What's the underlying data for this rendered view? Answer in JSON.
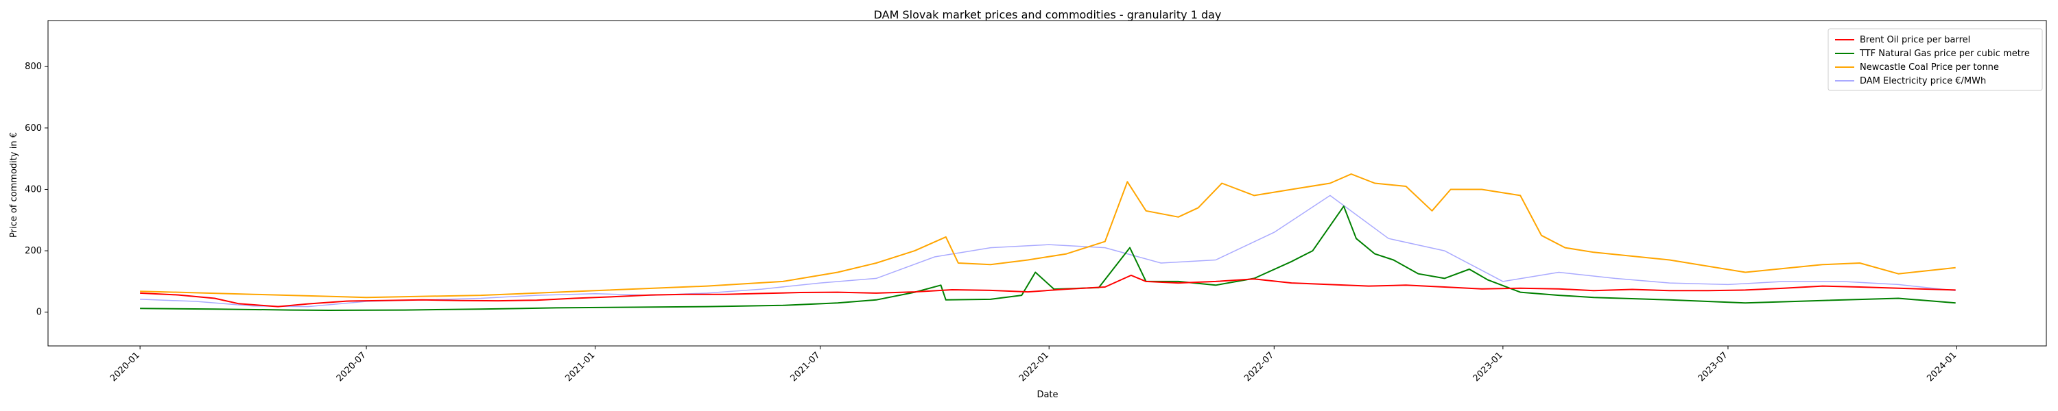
{
  "chart_data": {
    "type": "line",
    "title": "DAM Slovak market prices and commodities - granularity 1 day",
    "xlabel": "Date",
    "ylabel": "Price of commodity in €",
    "xlim": [
      "2019-10-19",
      "2024-03-13"
    ],
    "ylim": [
      -110,
      950
    ],
    "x_ticks": [
      "2020-01",
      "2020-07",
      "2021-01",
      "2021-07",
      "2022-01",
      "2022-07",
      "2023-01",
      "2023-07",
      "2024-01"
    ],
    "y_ticks": [
      0,
      200,
      400,
      600,
      800
    ],
    "grid": false,
    "legend_position": "top-right",
    "series": [
      {
        "name": "Brent Oil price per barrel",
        "color": "#ff0000",
        "x": [
          "2020-01-01",
          "2020-02-01",
          "2020-03-01",
          "2020-03-20",
          "2020-04-21",
          "2020-05-15",
          "2020-06-15",
          "2020-07-15",
          "2020-08-15",
          "2020-09-15",
          "2020-10-15",
          "2020-11-15",
          "2020-12-15",
          "2021-01-15",
          "2021-02-15",
          "2021-03-15",
          "2021-04-15",
          "2021-05-15",
          "2021-06-15",
          "2021-07-15",
          "2021-08-15",
          "2021-09-15",
          "2021-10-15",
          "2021-11-15",
          "2021-12-15",
          "2022-01-15",
          "2022-02-15",
          "2022-03-08",
          "2022-03-20",
          "2022-04-15",
          "2022-05-15",
          "2022-06-15",
          "2022-07-15",
          "2022-08-15",
          "2022-09-15",
          "2022-10-15",
          "2022-11-15",
          "2022-12-15",
          "2023-01-15",
          "2023-02-15",
          "2023-03-15",
          "2023-04-15",
          "2023-05-15",
          "2023-06-15",
          "2023-07-15",
          "2023-08-15",
          "2023-09-15",
          "2023-10-15",
          "2023-11-15",
          "2023-12-31"
        ],
        "y": [
          62,
          56,
          45,
          28,
          18,
          27,
          36,
          38,
          40,
          38,
          37,
          39,
          45,
          50,
          56,
          58,
          58,
          61,
          64,
          65,
          62,
          66,
          73,
          71,
          66,
          75,
          82,
          120,
          100,
          95,
          100,
          108,
          95,
          90,
          85,
          88,
          82,
          76,
          78,
          76,
          70,
          74,
          70,
          70,
          72,
          78,
          85,
          82,
          78,
          72
        ]
      },
      {
        "name": "TTF Natural Gas price per cubic metre",
        "color": "#008000",
        "x": [
          "2020-01-01",
          "2020-03-01",
          "2020-05-01",
          "2020-06-01",
          "2020-08-01",
          "2020-10-01",
          "2020-12-01",
          "2021-02-01",
          "2021-04-01",
          "2021-06-01",
          "2021-07-15",
          "2021-08-15",
          "2021-09-15",
          "2021-10-06",
          "2021-10-10",
          "2021-11-15",
          "2021-12-10",
          "2021-12-21",
          "2022-01-05",
          "2022-02-10",
          "2022-03-07",
          "2022-03-20",
          "2022-04-15",
          "2022-05-15",
          "2022-06-15",
          "2022-07-15",
          "2022-08-01",
          "2022-08-26",
          "2022-09-05",
          "2022-09-20",
          "2022-10-05",
          "2022-10-25",
          "2022-11-15",
          "2022-12-05",
          "2022-12-20",
          "2023-01-15",
          "2023-02-15",
          "2023-03-15",
          "2023-05-15",
          "2023-07-15",
          "2023-09-15",
          "2023-11-15",
          "2023-12-31"
        ],
        "y": [
          12,
          10,
          7,
          6,
          7,
          10,
          14,
          16,
          18,
          22,
          30,
          40,
          65,
          88,
          40,
          42,
          55,
          130,
          75,
          80,
          210,
          100,
          100,
          88,
          110,
          165,
          200,
          345,
          240,
          190,
          170,
          125,
          110,
          140,
          105,
          65,
          55,
          48,
          40,
          30,
          38,
          45,
          30
        ]
      },
      {
        "name": "Newcastle Coal Price per tonne",
        "color": "#ffa500",
        "x": [
          "2020-01-01",
          "2020-04-01",
          "2020-07-01",
          "2020-10-01",
          "2021-01-01",
          "2021-04-01",
          "2021-06-01",
          "2021-07-15",
          "2021-08-15",
          "2021-09-15",
          "2021-10-10",
          "2021-10-20",
          "2021-11-15",
          "2021-12-15",
          "2022-01-15",
          "2022-02-15",
          "2022-03-05",
          "2022-03-20",
          "2022-04-15",
          "2022-05-01",
          "2022-05-20",
          "2022-06-15",
          "2022-07-15",
          "2022-08-15",
          "2022-09-01",
          "2022-09-20",
          "2022-10-15",
          "2022-11-05",
          "2022-11-20",
          "2022-12-15",
          "2023-01-15",
          "2023-02-01",
          "2023-02-20",
          "2023-03-15",
          "2023-05-15",
          "2023-07-15",
          "2023-09-15",
          "2023-10-15",
          "2023-11-15",
          "2023-12-31"
        ],
        "y": [
          68,
          58,
          48,
          55,
          70,
          85,
          100,
          130,
          160,
          200,
          245,
          160,
          155,
          170,
          190,
          230,
          425,
          330,
          310,
          340,
          420,
          380,
          400,
          420,
          450,
          420,
          410,
          330,
          400,
          400,
          380,
          250,
          210,
          195,
          170,
          130,
          155,
          160,
          125,
          145
        ]
      },
      {
        "name": "DAM Electricity price €/MWh",
        "color": "#aaaaff",
        "x": [
          "2020-01-01",
          "2020-02-15",
          "2020-04-01",
          "2020-05-15",
          "2020-07-01",
          "2020-08-15",
          "2020-10-01",
          "2020-11-15",
          "2021-01-01",
          "2021-02-15",
          "2021-04-01",
          "2021-05-15",
          "2021-07-01",
          "2021-08-15",
          "2021-10-01",
          "2021-11-15",
          "2022-01-01",
          "2022-02-15",
          "2022-04-01",
          "2022-05-15",
          "2022-07-01",
          "2022-08-15",
          "2022-10-01",
          "2022-11-15",
          "2023-01-01",
          "2023-02-15",
          "2023-04-01",
          "2023-05-15",
          "2023-07-01",
          "2023-08-15",
          "2023-10-01",
          "2023-11-15",
          "2023-12-31"
        ],
        "y": [
          42,
          35,
          20,
          18,
          35,
          40,
          45,
          55,
          60,
          55,
          62,
          75,
          95,
          110,
          180,
          210,
          220,
          210,
          160,
          170,
          260,
          380,
          240,
          200,
          100,
          130,
          110,
          95,
          90,
          100,
          100,
          90,
          70
        ]
      }
    ]
  }
}
